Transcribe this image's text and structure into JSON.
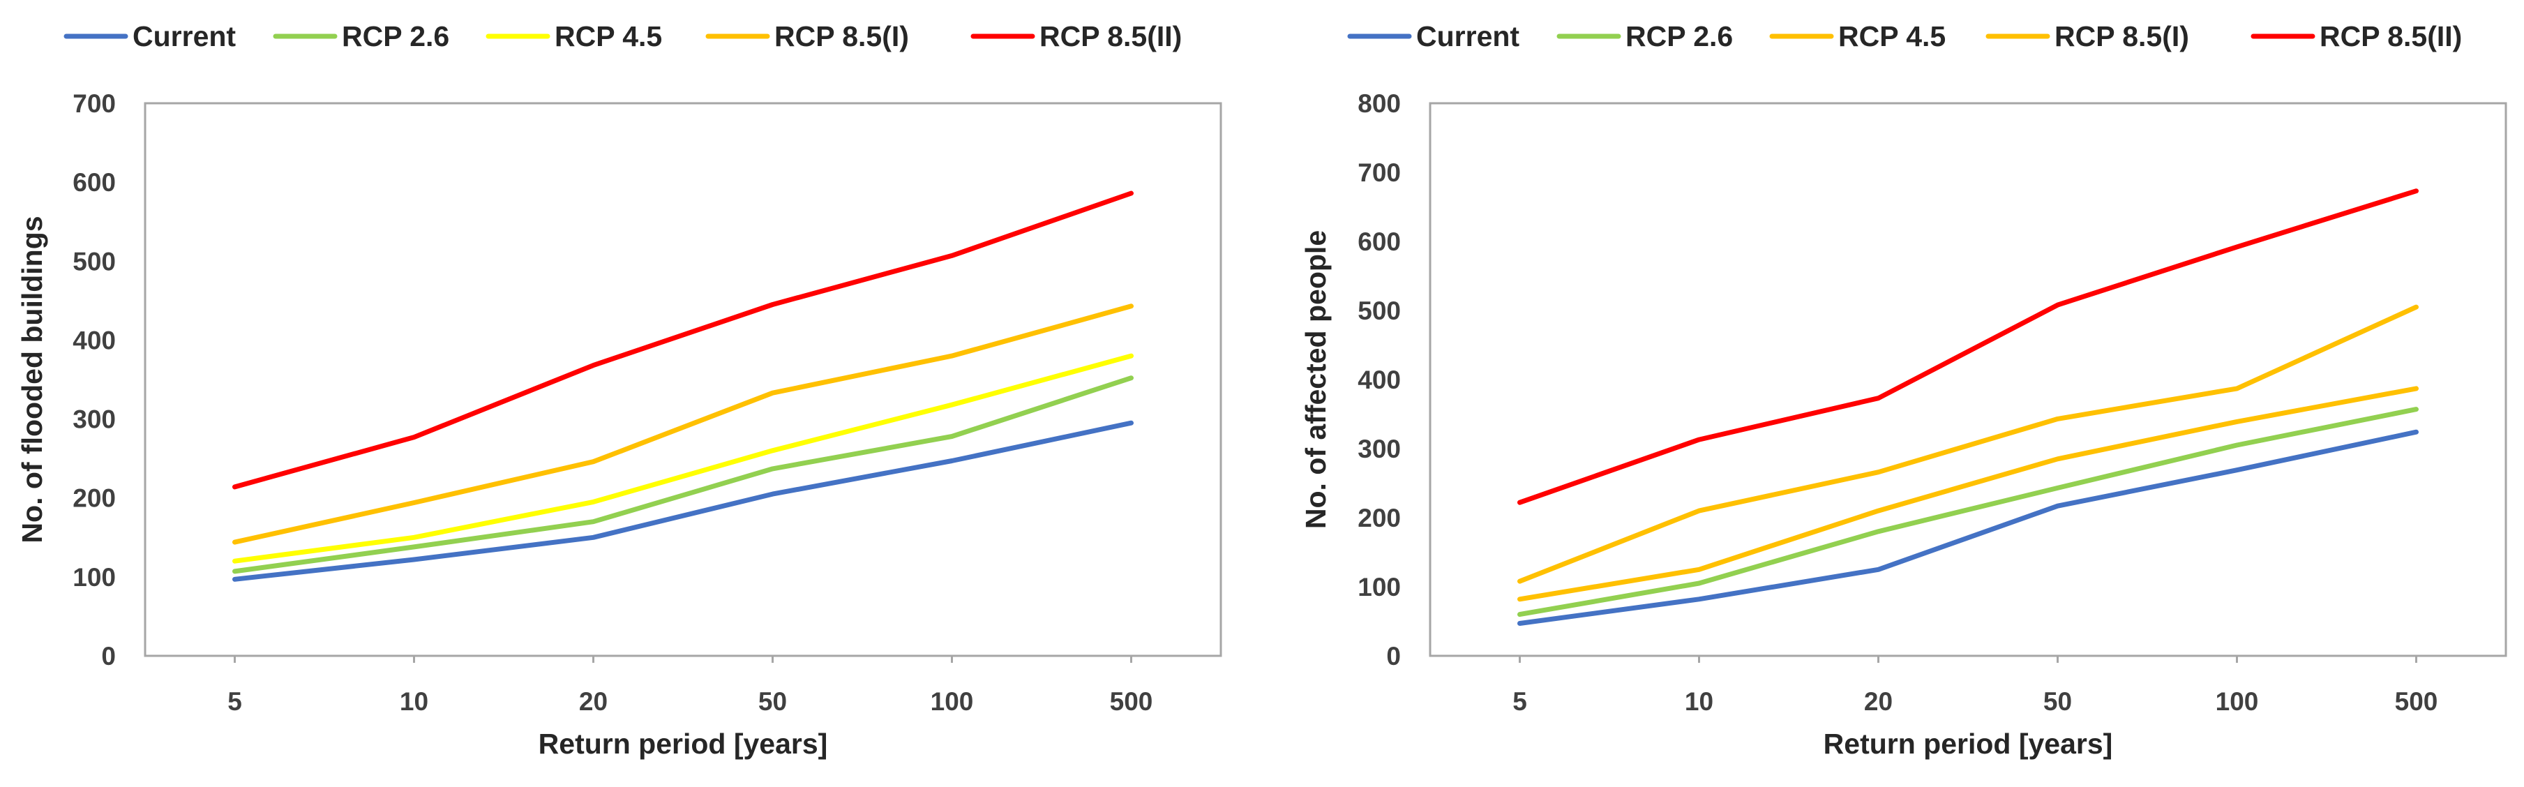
{
  "chart_data": [
    {
      "type": "line",
      "title": "",
      "xlabel": "Return period [years]",
      "ylabel": "No. of flooded buildings",
      "ylim": [
        0,
        700
      ],
      "ytick_step": 100,
      "grid": false,
      "legend_position": "top",
      "categories": [
        "5",
        "10",
        "20",
        "50",
        "100",
        "500"
      ],
      "series": [
        {
          "name": "Current",
          "color": "#4472C4",
          "values": [
            97,
            122,
            150,
            205,
            247,
            295
          ]
        },
        {
          "name": "RCP 2.6",
          "color": "#92D050",
          "values": [
            107,
            138,
            170,
            237,
            278,
            352
          ]
        },
        {
          "name": "RCP 4.5",
          "color": "#FFFF00",
          "values": [
            120,
            150,
            195,
            260,
            318,
            380
          ]
        },
        {
          "name": "RCP 8.5(I)",
          "color": "#FFC000",
          "values": [
            144,
            194,
            246,
            333,
            380,
            443
          ]
        },
        {
          "name": "RCP 8.5(II)",
          "color": "#FF0000",
          "values": [
            214,
            277,
            368,
            445,
            507,
            586
          ]
        }
      ]
    },
    {
      "type": "line",
      "title": "",
      "xlabel": "Return period [years]",
      "ylabel": "No. of affected people",
      "ylim": [
        0,
        800
      ],
      "ytick_step": 100,
      "grid": false,
      "legend_position": "top",
      "categories": [
        "5",
        "10",
        "20",
        "50",
        "100",
        "500"
      ],
      "series": [
        {
          "name": "Current",
          "color": "#4472C4",
          "values": [
            47,
            82,
            125,
            217,
            269,
            324
          ]
        },
        {
          "name": "RCP 2.6",
          "color": "#92D050",
          "values": [
            60,
            105,
            180,
            243,
            305,
            357
          ]
        },
        {
          "name": "RCP 4.5",
          "color": "#FFC000",
          "values": [
            82,
            125,
            210,
            285,
            339,
            387
          ]
        },
        {
          "name": "RCP 8.5(I)",
          "color": "#FFC000",
          "values": [
            108,
            210,
            266,
            343,
            387,
            505
          ]
        },
        {
          "name": "RCP 8.5(II)",
          "color": "#FF0000",
          "values": [
            222,
            313,
            373,
            508,
            592,
            673
          ]
        }
      ]
    }
  ]
}
